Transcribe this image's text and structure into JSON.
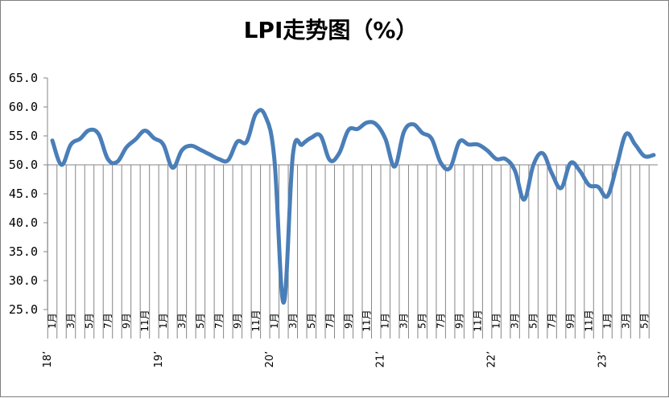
{
  "chart_data": {
    "type": "line",
    "title": "LPI走势图（%）",
    "xlabel": "",
    "ylabel": "",
    "ylim": [
      25,
      65
    ],
    "yticks": [
      "25.0",
      "30.0",
      "35.0",
      "40.0",
      "45.0",
      "50.0",
      "55.0",
      "60.0",
      "65.0"
    ],
    "x_axis_crosses_at": 50,
    "grid": false,
    "legend": "none",
    "line_color": "#4a7eb8",
    "x_tick_labels": [
      "1月",
      "3月",
      "5月",
      "7月",
      "9月",
      "11月",
      "1月",
      "3月",
      "5月",
      "7月",
      "9月",
      "11月",
      "1月",
      "3月",
      "5月",
      "7月",
      "9月",
      "11月",
      "1月",
      "3月",
      "5月",
      "7月",
      "9月",
      "11月",
      "1月",
      "3月",
      "5月",
      "7月",
      "9月",
      "11月",
      "1月",
      "3月",
      "5月"
    ],
    "year_labels": [
      {
        "label": "18’",
        "month_index": 0
      },
      {
        "label": "19’",
        "month_index": 12
      },
      {
        "label": "20’",
        "month_index": 24
      },
      {
        "label": "21’",
        "month_index": 36
      },
      {
        "label": "22’",
        "month_index": 48
      },
      {
        "label": "23’",
        "month_index": 60
      }
    ],
    "series": [
      {
        "values": [
          54.2,
          50.0,
          53.5,
          54.5,
          56.0,
          55.3,
          51.0,
          50.5,
          53.0,
          54.4,
          55.9,
          54.6,
          53.5,
          49.5,
          52.5,
          53.3,
          52.6,
          51.8,
          51.0,
          50.8,
          54.0,
          54.0,
          58.8,
          58.5,
          51.0,
          26.2,
          51.7,
          53.5,
          54.7,
          55.0,
          50.8,
          52.0,
          56.0,
          56.2,
          57.3,
          57.0,
          54.5,
          49.7,
          55.7,
          57.0,
          55.5,
          54.5,
          50.3,
          49.5,
          54.0,
          53.5,
          53.5,
          52.5,
          51.0,
          51.0,
          49.0,
          44.0,
          50.0,
          52.0,
          48.5,
          46.0,
          50.3,
          49.0,
          46.5,
          46.2,
          44.6,
          49.8,
          55.3,
          53.5,
          51.5,
          51.7
        ]
      }
    ]
  }
}
